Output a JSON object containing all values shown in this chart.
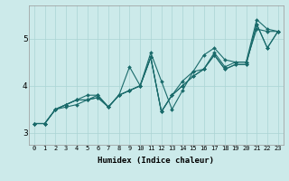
{
  "xlabel": "Humidex (Indice chaleur)",
  "ylabel": "",
  "background_color": "#cceaea",
  "line_color": "#1a6b6b",
  "grid_color": "#aad4d4",
  "xlim": [
    -0.5,
    23.5
  ],
  "ylim": [
    2.75,
    5.7
  ],
  "xticks": [
    0,
    1,
    2,
    3,
    4,
    5,
    6,
    7,
    8,
    9,
    10,
    11,
    12,
    13,
    14,
    15,
    16,
    17,
    18,
    19,
    20,
    21,
    22,
    23
  ],
  "yticks": [
    3,
    4,
    5
  ],
  "series": [
    [
      3.2,
      3.2,
      3.5,
      3.6,
      3.7,
      3.8,
      3.8,
      3.55,
      3.8,
      3.9,
      4.0,
      4.7,
      4.1,
      3.5,
      3.9,
      4.3,
      4.35,
      4.7,
      4.4,
      4.5,
      4.5,
      5.4,
      5.2,
      5.15
    ],
    [
      3.2,
      3.2,
      3.5,
      3.6,
      3.7,
      3.7,
      3.8,
      3.55,
      3.8,
      4.4,
      4.0,
      4.6,
      3.45,
      3.8,
      4.1,
      4.3,
      4.65,
      4.8,
      4.55,
      4.5,
      4.5,
      5.2,
      5.15,
      5.15
    ],
    [
      3.2,
      3.2,
      3.5,
      3.6,
      3.7,
      3.7,
      3.75,
      3.55,
      3.8,
      3.9,
      4.0,
      4.6,
      3.45,
      3.8,
      4.0,
      4.2,
      4.35,
      4.65,
      4.35,
      4.45,
      4.45,
      5.3,
      4.8,
      5.15
    ],
    [
      3.2,
      3.2,
      3.5,
      3.55,
      3.6,
      3.7,
      3.75,
      3.55,
      3.8,
      3.9,
      4.0,
      4.6,
      3.45,
      3.8,
      4.0,
      4.2,
      4.35,
      4.65,
      4.35,
      4.45,
      4.45,
      5.3,
      4.8,
      5.15
    ]
  ],
  "tick_fontsize": 5.0,
  "label_fontsize": 6.5,
  "linewidth": 0.8,
  "markersize": 2.0
}
